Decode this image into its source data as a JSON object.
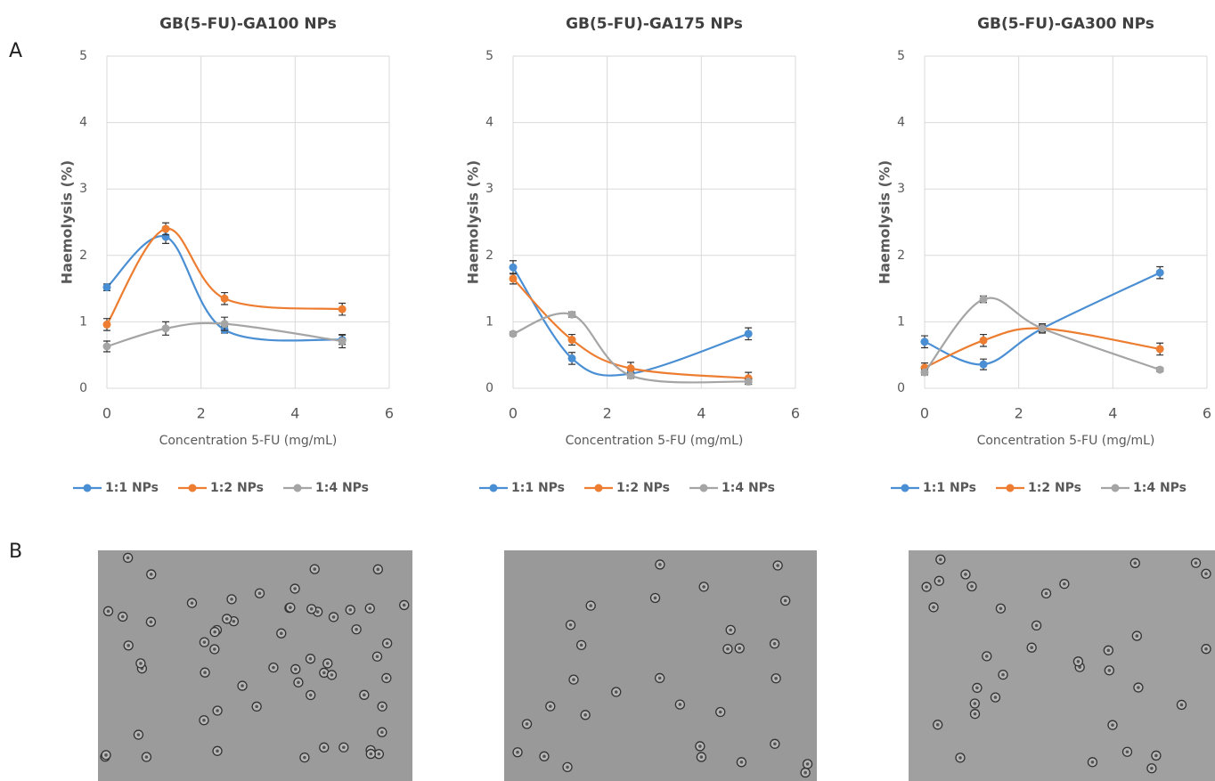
{
  "panel_labels": [
    "A",
    "B"
  ],
  "chart_data": [
    {
      "type": "line",
      "title": "GB(5-FU)-GA100 NPs",
      "x_label": "Concentration 5-FU (mg/mL)",
      "y_label": "Haemolysis (%)",
      "x": [
        0,
        1.25,
        2.5,
        5
      ],
      "xlim": [
        0,
        6
      ],
      "ylim": [
        0,
        5
      ],
      "xticks": [
        0,
        2,
        4,
        6
      ],
      "yticks": [
        0,
        1,
        2,
        3,
        4,
        5
      ],
      "grid": true,
      "legend": "bottom",
      "series": [
        {
          "name": "1:1 NPs",
          "color": "#4a8fd4",
          "values": [
            1.52,
            2.28,
            0.88,
            0.73
          ],
          "errors": [
            0.05,
            0.1,
            0.05,
            0.07
          ]
        },
        {
          "name": "1:2 NPs",
          "color": "#ed7d31",
          "values": [
            0.96,
            2.4,
            1.35,
            1.19
          ],
          "errors": [
            0.09,
            0.09,
            0.09,
            0.09
          ]
        },
        {
          "name": "1:4 NPs",
          "color": "#a5a5a5",
          "values": [
            0.63,
            0.9,
            0.97,
            0.71
          ],
          "errors": [
            0.08,
            0.1,
            0.1,
            0.1
          ]
        }
      ]
    },
    {
      "type": "line",
      "title": "GB(5-FU)-GA175 NPs",
      "x_label": "Concentration 5-FU (mg/mL)",
      "y_label": "Haemolysis (%)",
      "x": [
        0,
        1.25,
        2.5,
        5
      ],
      "xlim": [
        0,
        6
      ],
      "ylim": [
        0,
        5
      ],
      "xticks": [
        0,
        2,
        4,
        6
      ],
      "yticks": [
        0,
        1,
        2,
        3,
        4,
        5
      ],
      "grid": true,
      "legend": "bottom",
      "series": [
        {
          "name": "1:1 NPs",
          "color": "#4a8fd4",
          "values": [
            1.82,
            0.45,
            0.22,
            0.82
          ],
          "errors": [
            0.1,
            0.09,
            0.04,
            0.09
          ]
        },
        {
          "name": "1:2 NPs",
          "color": "#ed7d31",
          "values": [
            1.65,
            0.73,
            0.3,
            0.15
          ],
          "errors": [
            0.08,
            0.08,
            0.09,
            0.09
          ]
        },
        {
          "name": "1:4 NPs",
          "color": "#a5a5a5",
          "values": [
            0.82,
            1.11,
            0.19,
            0.1
          ],
          "errors": [
            0.03,
            0.04,
            0.04,
            0.04
          ]
        }
      ]
    },
    {
      "type": "line",
      "title": "GB(5-FU)-GA300 NPs",
      "x_label": "Concentration 5-FU (mg/mL)",
      "y_label": "Haemolysis (%)",
      "x": [
        0,
        1.25,
        2.5,
        5
      ],
      "xlim": [
        0,
        6
      ],
      "ylim": [
        0,
        5
      ],
      "xticks": [
        0,
        2,
        4,
        6
      ],
      "yticks": [
        0,
        1,
        2,
        3,
        4,
        5
      ],
      "grid": true,
      "legend": "bottom",
      "series": [
        {
          "name": "1:1 NPs",
          "color": "#4a8fd4",
          "values": [
            0.7,
            0.36,
            0.9,
            1.74
          ],
          "errors": [
            0.09,
            0.08,
            0.05,
            0.09
          ]
        },
        {
          "name": "1:2 NPs",
          "color": "#ed7d31",
          "values": [
            0.31,
            0.72,
            0.9,
            0.59
          ],
          "errors": [
            0.07,
            0.09,
            0.07,
            0.09
          ]
        },
        {
          "name": "1:4 NPs",
          "color": "#a5a5a5",
          "values": [
            0.24,
            1.34,
            0.9,
            0.28
          ],
          "errors": [
            0.04,
            0.05,
            0.05,
            0.03
          ]
        }
      ]
    }
  ]
}
